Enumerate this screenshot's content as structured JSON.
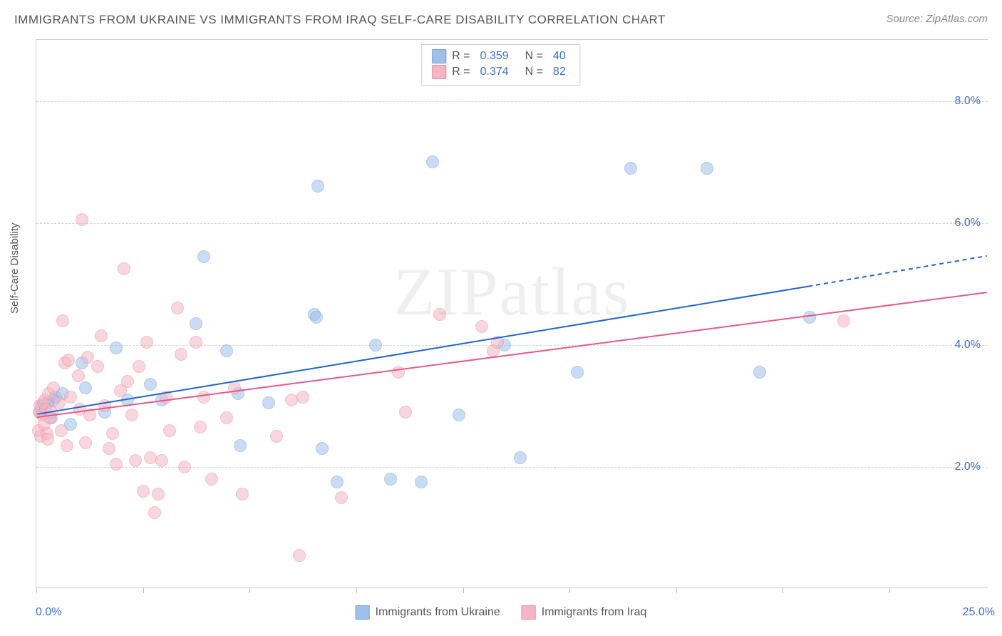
{
  "title": "IMMIGRANTS FROM UKRAINE VS IMMIGRANTS FROM IRAQ SELF-CARE DISABILITY CORRELATION CHART",
  "source_label": "Source:",
  "source_value": "ZipAtlas.com",
  "watermark": "ZIPatlas",
  "y_axis_label": "Self-Care Disability",
  "chart": {
    "type": "scatter",
    "background_color": "#ffffff",
    "grid_color": "#d5d5d5",
    "axis_color": "#cccccc",
    "tick_label_color": "#3b6fd6",
    "xlim": [
      0.0,
      25.0
    ],
    "ylim": [
      0.0,
      9.0
    ],
    "x_min_label": "0.0%",
    "x_max_label": "25.0%",
    "y_ticks": [
      2.0,
      4.0,
      6.0,
      8.0
    ],
    "y_tick_labels": [
      "2.0%",
      "4.0%",
      "6.0%",
      "8.0%"
    ],
    "x_tick_positions": [
      0,
      2.8,
      5.6,
      8.4,
      11.2,
      14.0,
      16.8,
      19.6,
      22.4
    ],
    "marker_size": 18,
    "marker_opacity": 0.55,
    "line_width": 2,
    "series": [
      {
        "name": "Immigrants from Ukraine",
        "fill_color": "#9ec1ea",
        "stroke_color": "#6fa0d8",
        "line_color": "#1f66d1",
        "r_value": "0.359",
        "n_value": "40",
        "trend": {
          "x1": 0.0,
          "y1": 2.85,
          "x2": 20.3,
          "y2": 4.95,
          "dash_to_x": 25.0,
          "dash_to_y": 5.45
        },
        "points": [
          [
            0.1,
            2.9
          ],
          [
            0.15,
            3.0
          ],
          [
            0.3,
            3.05
          ],
          [
            0.4,
            2.8
          ],
          [
            0.45,
            3.1
          ],
          [
            0.5,
            3.15
          ],
          [
            0.7,
            3.2
          ],
          [
            0.9,
            2.7
          ],
          [
            1.2,
            3.7
          ],
          [
            1.3,
            3.3
          ],
          [
            1.8,
            2.9
          ],
          [
            2.1,
            3.95
          ],
          [
            2.4,
            3.1
          ],
          [
            3.0,
            3.35
          ],
          [
            3.3,
            3.1
          ],
          [
            4.2,
            4.35
          ],
          [
            4.4,
            5.45
          ],
          [
            5.0,
            3.9
          ],
          [
            5.3,
            3.2
          ],
          [
            5.35,
            2.35
          ],
          [
            6.1,
            3.05
          ],
          [
            7.3,
            4.5
          ],
          [
            7.35,
            4.45
          ],
          [
            7.4,
            6.6
          ],
          [
            7.5,
            2.3
          ],
          [
            7.9,
            1.75
          ],
          [
            8.9,
            4.0
          ],
          [
            9.3,
            1.8
          ],
          [
            10.1,
            1.75
          ],
          [
            10.4,
            7.0
          ],
          [
            11.1,
            2.85
          ],
          [
            12.3,
            4.0
          ],
          [
            12.7,
            2.15
          ],
          [
            14.2,
            3.55
          ],
          [
            15.6,
            6.9
          ],
          [
            17.6,
            6.9
          ],
          [
            19.0,
            3.55
          ],
          [
            20.3,
            4.45
          ]
        ]
      },
      {
        "name": "Immigrants from Iraq",
        "fill_color": "#f4b6c4",
        "stroke_color": "#e98ba2",
        "line_color": "#e55a87",
        "r_value": "0.374",
        "n_value": "82",
        "trend": {
          "x1": 0.0,
          "y1": 2.8,
          "x2": 25.0,
          "y2": 4.85
        },
        "points": [
          [
            0.05,
            2.6
          ],
          [
            0.08,
            2.9
          ],
          [
            0.1,
            3.0
          ],
          [
            0.12,
            2.5
          ],
          [
            0.15,
            2.85
          ],
          [
            0.18,
            3.05
          ],
          [
            0.2,
            2.7
          ],
          [
            0.22,
            3.1
          ],
          [
            0.25,
            2.95
          ],
          [
            0.28,
            2.55
          ],
          [
            0.3,
            2.45
          ],
          [
            0.32,
            3.2
          ],
          [
            0.35,
            2.8
          ],
          [
            0.4,
            2.9
          ],
          [
            0.45,
            3.3
          ],
          [
            0.6,
            3.05
          ],
          [
            0.65,
            2.6
          ],
          [
            0.7,
            4.4
          ],
          [
            0.75,
            3.7
          ],
          [
            0.8,
            2.35
          ],
          [
            0.85,
            3.75
          ],
          [
            0.9,
            3.15
          ],
          [
            1.1,
            3.5
          ],
          [
            1.15,
            2.95
          ],
          [
            1.2,
            6.05
          ],
          [
            1.3,
            2.4
          ],
          [
            1.35,
            3.8
          ],
          [
            1.4,
            2.85
          ],
          [
            1.6,
            3.65
          ],
          [
            1.7,
            4.15
          ],
          [
            1.8,
            3.0
          ],
          [
            1.9,
            2.3
          ],
          [
            2.0,
            2.55
          ],
          [
            2.1,
            2.05
          ],
          [
            2.2,
            3.25
          ],
          [
            2.3,
            5.25
          ],
          [
            2.4,
            3.4
          ],
          [
            2.5,
            2.85
          ],
          [
            2.6,
            2.1
          ],
          [
            2.7,
            3.65
          ],
          [
            2.8,
            1.6
          ],
          [
            2.9,
            4.05
          ],
          [
            3.0,
            2.15
          ],
          [
            3.1,
            1.25
          ],
          [
            3.2,
            1.55
          ],
          [
            3.3,
            2.1
          ],
          [
            3.4,
            3.15
          ],
          [
            3.5,
            2.6
          ],
          [
            3.7,
            4.6
          ],
          [
            3.8,
            3.85
          ],
          [
            3.9,
            2.0
          ],
          [
            4.2,
            4.05
          ],
          [
            4.3,
            2.65
          ],
          [
            4.4,
            3.15
          ],
          [
            4.6,
            1.8
          ],
          [
            5.0,
            2.8
          ],
          [
            5.2,
            3.3
          ],
          [
            5.4,
            1.55
          ],
          [
            6.3,
            2.5
          ],
          [
            6.7,
            3.1
          ],
          [
            6.9,
            0.55
          ],
          [
            7.0,
            3.15
          ],
          [
            8.0,
            1.5
          ],
          [
            9.5,
            3.55
          ],
          [
            9.7,
            2.9
          ],
          [
            10.6,
            4.5
          ],
          [
            11.7,
            4.3
          ],
          [
            12.0,
            3.9
          ],
          [
            12.1,
            4.05
          ],
          [
            21.2,
            4.4
          ]
        ]
      }
    ]
  }
}
